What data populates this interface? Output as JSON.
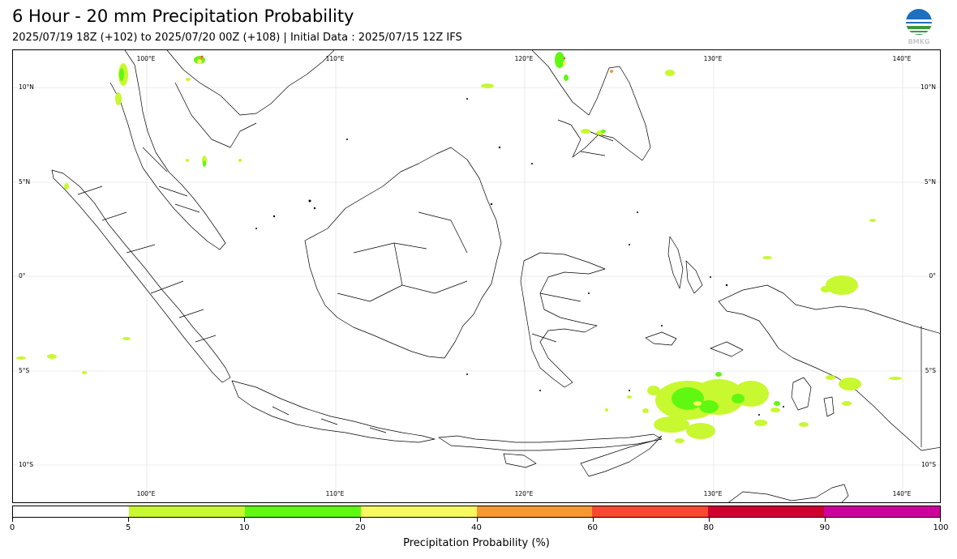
{
  "header": {
    "title": "6 Hour - 20 mm Precipitation Probability",
    "subtitle": "2025/07/19 18Z (+102) to 2025/07/20 00Z (+108) | Initial Data : 2025/07/15 12Z IFS",
    "logo_text": "BMKG"
  },
  "map": {
    "projection": "equirectangular",
    "lon_range": [
      93,
      142
    ],
    "lat_range": [
      -12,
      12
    ],
    "grid": true,
    "lon_labels": [
      "100°E",
      "110°E",
      "120°E",
      "130°E",
      "140°E"
    ],
    "lat_labels": [
      "10°N",
      "5°N",
      "0°",
      "5°S",
      "10°S"
    ],
    "land_color": "#ffffff",
    "coast_color": "#000000"
  },
  "colorbar": {
    "label": "Precipitation Probability (%)",
    "ticks": [
      "0",
      "5",
      "10",
      "20",
      "40",
      "60",
      "80",
      "90",
      "100"
    ],
    "colors": [
      "#ffffff",
      "#c8f830",
      "#60f810",
      "#f8f860",
      "#f89830",
      "#f84830",
      "#d00030",
      "#d0009c"
    ]
  }
}
